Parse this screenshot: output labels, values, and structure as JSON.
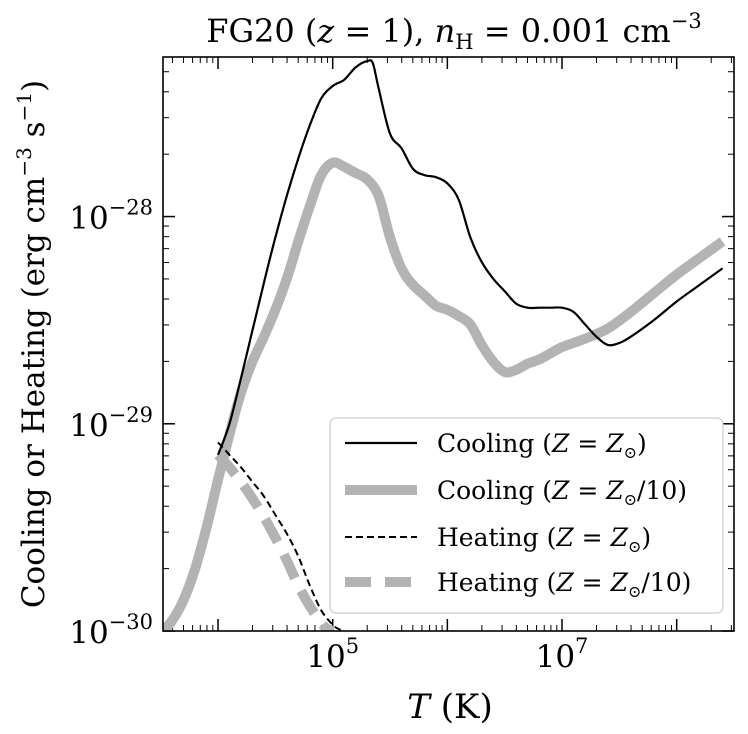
{
  "chart_data": {
    "type": "line",
    "title": "FG20 (z = 1),  n_H = 0.001 cm^-3",
    "title_parts": {
      "prefix": "FG20 (",
      "z_var": "z",
      "z_rest": " = 1),  ",
      "n_var": "n",
      "n_sub": "H",
      "n_rest": " = 0.001 cm",
      "n_exp": "−3"
    },
    "xlabel": "T (K)",
    "xlabel_parts": {
      "var": "T",
      "rest": " (K)"
    },
    "ylabel": "Cooling or Heating (erg cm^-3 s^-1)",
    "ylabel_parts": {
      "main": "Cooling or Heating (erg cm",
      "exp1": "−3",
      "mid": " s",
      "exp2": "−1",
      "end": ")"
    },
    "xscale": "log",
    "yscale": "log",
    "xlim_log10": [
      3.52,
      8.5
    ],
    "ylim_log10": [
      -30,
      -27.23
    ],
    "x_ticks": [
      {
        "log10": 5,
        "base": "10",
        "exp": "5"
      },
      {
        "log10": 7,
        "base": "10",
        "exp": "7"
      }
    ],
    "y_ticks": [
      {
        "log10": -28,
        "base": "10",
        "exp": "−28"
      },
      {
        "log10": -29,
        "base": "10",
        "exp": "−29"
      },
      {
        "log10": -30,
        "base": "10",
        "exp": "−30"
      }
    ],
    "grid": false,
    "legend_position": "lower-right",
    "series": [
      {
        "name": "Cooling (Z=Z⊙)",
        "legend_text": "Cooling (",
        "legend_var": "Z",
        "legend_eq": " = ",
        "legend_sym": "Z",
        "legend_sub": "⊙",
        "legend_tail": ")",
        "role": "cooling-solar",
        "color": "#000000",
        "log10_T": [
          4.0,
          4.1,
          4.2,
          4.3,
          4.4,
          4.5,
          4.6,
          4.7,
          4.8,
          4.9,
          5.0,
          5.1,
          5.2,
          5.3,
          5.35,
          5.4,
          5.5,
          5.6,
          5.7,
          5.8,
          5.9,
          6.0,
          6.1,
          6.2,
          6.3,
          6.4,
          6.5,
          6.6,
          6.7,
          6.8,
          6.9,
          7.0,
          7.1,
          7.2,
          7.3,
          7.4,
          7.5,
          7.6,
          7.8,
          8.0,
          8.2,
          8.4
        ],
        "log10_rate": [
          -29.15,
          -29.0,
          -28.78,
          -28.55,
          -28.32,
          -28.1,
          -27.9,
          -27.72,
          -27.56,
          -27.43,
          -27.37,
          -27.34,
          -27.28,
          -27.25,
          -27.26,
          -27.38,
          -27.6,
          -27.67,
          -27.77,
          -27.8,
          -27.81,
          -27.84,
          -27.92,
          -28.1,
          -28.22,
          -28.3,
          -28.36,
          -28.42,
          -28.44,
          -28.44,
          -28.44,
          -28.44,
          -28.46,
          -28.52,
          -28.58,
          -28.62,
          -28.61,
          -28.58,
          -28.5,
          -28.41,
          -28.33,
          -28.25
        ]
      },
      {
        "name": "Cooling (Z=Z⊙/10)",
        "legend_text": "Cooling (",
        "legend_var": "Z",
        "legend_eq": " = ",
        "legend_sym": "Z",
        "legend_sub": "⊙",
        "legend_tail": "/10)",
        "role": "cooling-tenth",
        "color": "#b3b3b3",
        "log10_T": [
          3.52,
          3.6,
          3.7,
          3.8,
          3.9,
          4.0,
          4.1,
          4.2,
          4.3,
          4.4,
          4.5,
          4.6,
          4.7,
          4.8,
          4.9,
          5.0,
          5.1,
          5.2,
          5.3,
          5.4,
          5.5,
          5.6,
          5.7,
          5.8,
          5.9,
          6.0,
          6.1,
          6.2,
          6.3,
          6.4,
          6.5,
          6.6,
          6.7,
          6.8,
          6.9,
          7.0,
          7.2,
          7.4,
          7.6,
          7.8,
          8.0,
          8.2,
          8.4
        ],
        "log10_rate": [
          -30.0,
          -29.95,
          -29.85,
          -29.7,
          -29.5,
          -29.27,
          -29.05,
          -28.85,
          -28.7,
          -28.58,
          -28.45,
          -28.3,
          -28.12,
          -27.95,
          -27.8,
          -27.74,
          -27.76,
          -27.79,
          -27.82,
          -27.9,
          -28.1,
          -28.25,
          -28.33,
          -28.38,
          -28.43,
          -28.45,
          -28.48,
          -28.52,
          -28.62,
          -28.7,
          -28.75,
          -28.74,
          -28.71,
          -28.69,
          -28.66,
          -28.63,
          -28.59,
          -28.54,
          -28.46,
          -28.37,
          -28.28,
          -28.2,
          -28.12
        ]
      },
      {
        "name": "Heating (Z=Z⊙)",
        "legend_text": "Heating (",
        "legend_var": "Z",
        "legend_eq": " = ",
        "legend_sym": "Z",
        "legend_sub": "⊙",
        "legend_tail": ")",
        "role": "heating-solar",
        "color": "#000000",
        "log10_T": [
          4.0,
          4.1,
          4.2,
          4.3,
          4.4,
          4.5,
          4.6,
          4.7,
          4.8,
          4.9,
          5.0,
          5.05,
          5.1
        ],
        "log10_rate": [
          -29.09,
          -29.15,
          -29.21,
          -29.28,
          -29.35,
          -29.44,
          -29.53,
          -29.64,
          -29.78,
          -29.9,
          -29.97,
          -29.99,
          -30.0
        ]
      },
      {
        "name": "Heating (Z=Z⊙/10)",
        "legend_text": "Heating (",
        "legend_var": "Z",
        "legend_eq": " = ",
        "legend_sym": "Z",
        "legend_sub": "⊙",
        "legend_tail": "/10)",
        "role": "heating-tenth",
        "color": "#b3b3b3",
        "log10_T": [
          4.0,
          4.1,
          4.2,
          4.3,
          4.4,
          4.5,
          4.6,
          4.7,
          4.8,
          4.9,
          4.95,
          5.0
        ],
        "log10_rate": [
          -29.15,
          -29.21,
          -29.28,
          -29.36,
          -29.45,
          -29.55,
          -29.66,
          -29.78,
          -29.88,
          -29.96,
          -29.99,
          -30.0
        ]
      }
    ]
  }
}
